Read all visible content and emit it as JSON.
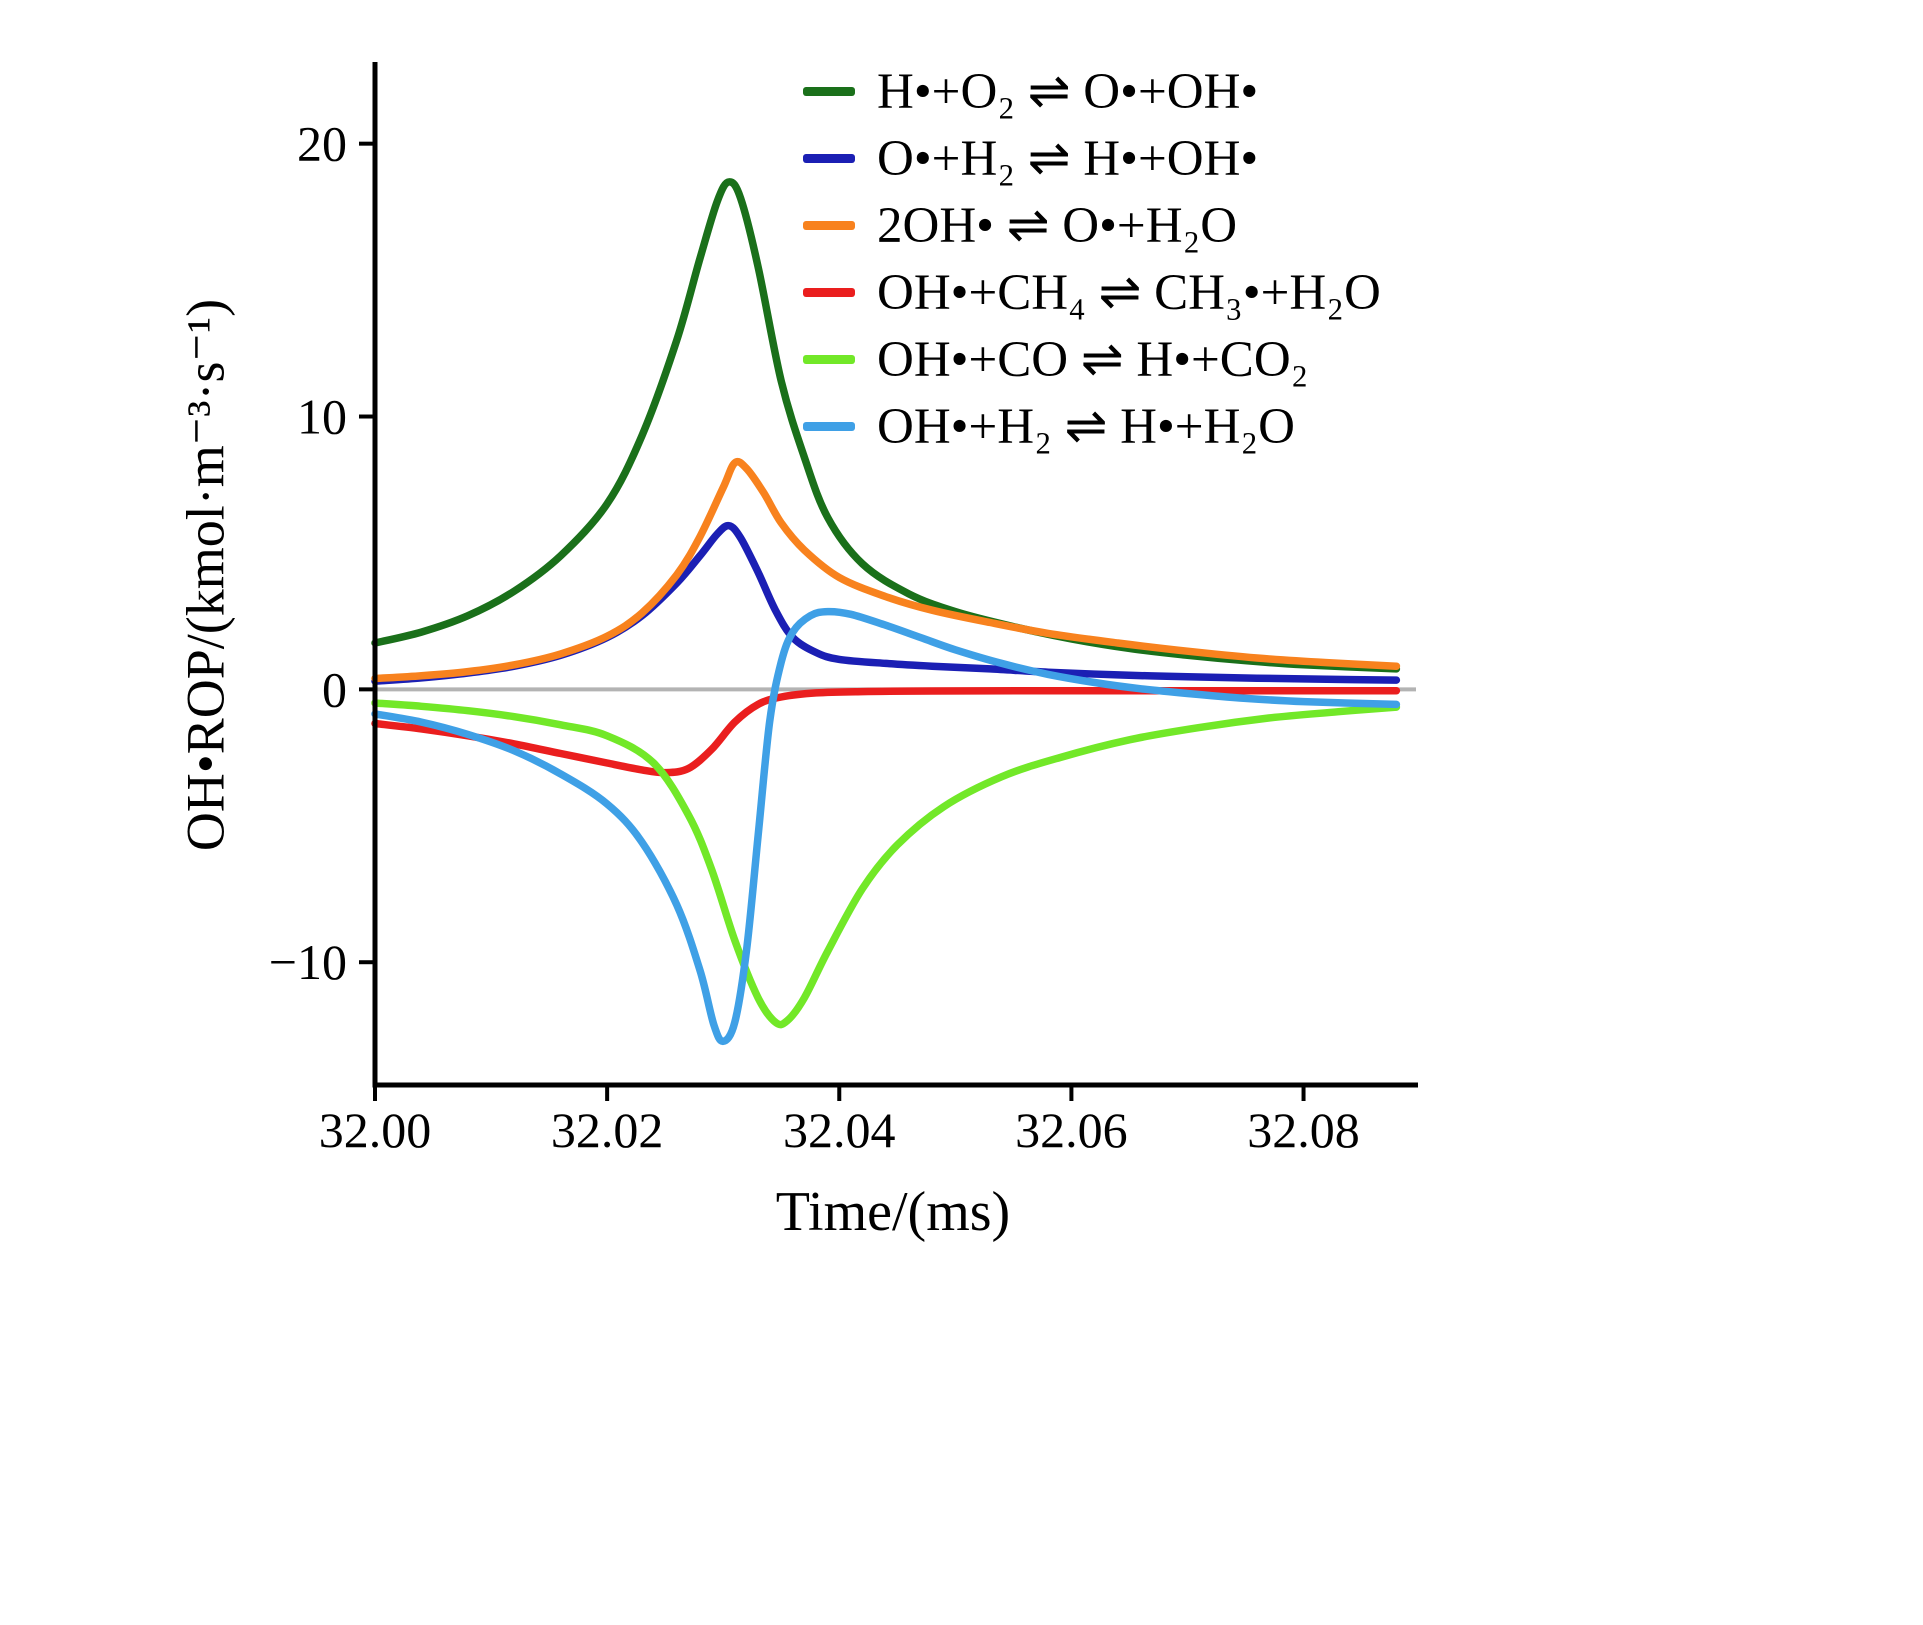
{
  "chart_data": {
    "type": "line",
    "title": "",
    "xlabel": "Time/(ms)",
    "ylabel": "OH•ROP/(kmol·m⁻³·s⁻¹)",
    "xlim": [
      32.0,
      32.089
    ],
    "ylim": [
      -14.5,
      22.7
    ],
    "xticks": [
      32.0,
      32.02,
      32.04,
      32.06,
      32.08
    ],
    "xtick_labels": [
      "32.00",
      "32.02",
      "32.04",
      "32.06",
      "32.08"
    ],
    "yticks": [
      -10,
      0,
      10,
      20
    ],
    "ytick_labels": [
      "−10",
      "0",
      "10",
      "20"
    ],
    "grid": false,
    "zero_line": true,
    "zero_line_color": "#b3b3b3",
    "legend_position": "top-right",
    "series": [
      {
        "name": "H•+O₂ ⇌ O•+OH•",
        "color": "#1a701a",
        "x": [
          32.0,
          32.004,
          32.008,
          32.012,
          32.016,
          32.02,
          32.023,
          32.026,
          32.028,
          32.0295,
          32.0305,
          32.0315,
          32.033,
          32.035,
          32.037,
          32.039,
          32.042,
          32.046,
          32.05,
          32.055,
          32.06,
          32.065,
          32.07,
          32.075,
          32.08,
          32.088
        ],
        "y": [
          1.7,
          2.1,
          2.7,
          3.6,
          4.9,
          6.8,
          9.3,
          12.8,
          15.8,
          17.9,
          18.6,
          18.0,
          15.5,
          11.3,
          8.5,
          6.3,
          4.6,
          3.5,
          2.85,
          2.3,
          1.85,
          1.5,
          1.25,
          1.05,
          0.9,
          0.75
        ]
      },
      {
        "name": "O•+H₂ ⇌ H•+OH•",
        "color": "#1b1fb4",
        "x": [
          32.0,
          32.004,
          32.008,
          32.012,
          32.016,
          32.02,
          32.023,
          32.026,
          32.028,
          32.0295,
          32.0305,
          32.0315,
          32.033,
          32.0345,
          32.036,
          32.038,
          32.04,
          32.044,
          32.048,
          32.053,
          32.058,
          32.064,
          32.07,
          32.076,
          32.082,
          32.088
        ],
        "y": [
          0.3,
          0.42,
          0.6,
          0.85,
          1.25,
          1.9,
          2.7,
          3.9,
          4.9,
          5.7,
          6.0,
          5.55,
          4.3,
          2.9,
          1.9,
          1.35,
          1.1,
          0.95,
          0.85,
          0.75,
          0.63,
          0.53,
          0.46,
          0.41,
          0.37,
          0.34
        ]
      },
      {
        "name": "2OH• ⇌ O•+H₂O",
        "color": "#f8821e",
        "x": [
          32.0,
          32.004,
          32.008,
          32.012,
          32.016,
          32.02,
          32.023,
          32.026,
          32.028,
          32.03,
          32.031,
          32.032,
          32.0335,
          32.035,
          32.037,
          32.04,
          32.044,
          32.048,
          32.053,
          32.058,
          32.064,
          32.07,
          32.076,
          32.082,
          32.088
        ],
        "y": [
          0.4,
          0.5,
          0.65,
          0.9,
          1.3,
          1.95,
          2.8,
          4.2,
          5.6,
          7.4,
          8.3,
          8.1,
          7.2,
          6.1,
          5.1,
          4.1,
          3.4,
          2.9,
          2.45,
          2.05,
          1.7,
          1.4,
          1.15,
          0.98,
          0.85
        ]
      },
      {
        "name": "OH•+CH₄ ⇌ CH₃•+H₂O",
        "color": "#ea1e1e",
        "x": [
          32.0,
          32.004,
          32.008,
          32.012,
          32.016,
          32.02,
          32.023,
          32.025,
          32.027,
          32.029,
          32.031,
          32.033,
          32.035,
          32.038,
          32.042,
          32.048,
          32.056,
          32.066,
          32.076,
          32.088
        ],
        "y": [
          -1.25,
          -1.45,
          -1.7,
          -2.0,
          -2.35,
          -2.7,
          -2.95,
          -3.05,
          -2.9,
          -2.2,
          -1.2,
          -0.55,
          -0.28,
          -0.13,
          -0.08,
          -0.06,
          -0.05,
          -0.05,
          -0.05,
          -0.05
        ]
      },
      {
        "name": "OH•+CO ⇌ H•+CO₂",
        "color": "#72e828",
        "x": [
          32.0,
          32.004,
          32.008,
          32.012,
          32.016,
          32.02,
          32.024,
          32.027,
          32.029,
          32.031,
          32.033,
          32.0345,
          32.0355,
          32.037,
          32.039,
          32.042,
          32.045,
          32.049,
          32.054,
          32.059,
          32.065,
          32.071,
          32.077,
          32.083,
          32.088
        ],
        "y": [
          -0.5,
          -0.62,
          -0.78,
          -1.0,
          -1.3,
          -1.7,
          -2.7,
          -4.6,
          -6.6,
          -9.2,
          -11.3,
          -12.2,
          -12.15,
          -11.3,
          -9.6,
          -7.3,
          -5.7,
          -4.3,
          -3.2,
          -2.5,
          -1.85,
          -1.4,
          -1.05,
          -0.82,
          -0.65
        ]
      },
      {
        "name": "OH•+H₂ ⇌ H•+H₂O",
        "color": "#3fa0e6",
        "x": [
          32.0,
          32.004,
          32.008,
          32.012,
          32.016,
          32.02,
          32.023,
          32.026,
          32.028,
          32.0292,
          32.03,
          32.031,
          32.032,
          32.033,
          32.034,
          32.035,
          32.036,
          32.0375,
          32.039,
          32.041,
          32.044,
          32.047,
          32.05,
          32.054,
          32.058,
          32.062,
          32.066,
          32.07,
          32.075,
          32.08,
          32.088
        ],
        "y": [
          -0.9,
          -1.2,
          -1.65,
          -2.25,
          -3.1,
          -4.2,
          -5.6,
          -7.9,
          -10.3,
          -12.3,
          -12.9,
          -12.2,
          -9.6,
          -5.4,
          -1.2,
          1.0,
          2.1,
          2.7,
          2.85,
          2.75,
          2.35,
          1.9,
          1.45,
          0.95,
          0.55,
          0.25,
          0.02,
          -0.15,
          -0.33,
          -0.45,
          -0.55
        ]
      }
    ]
  }
}
